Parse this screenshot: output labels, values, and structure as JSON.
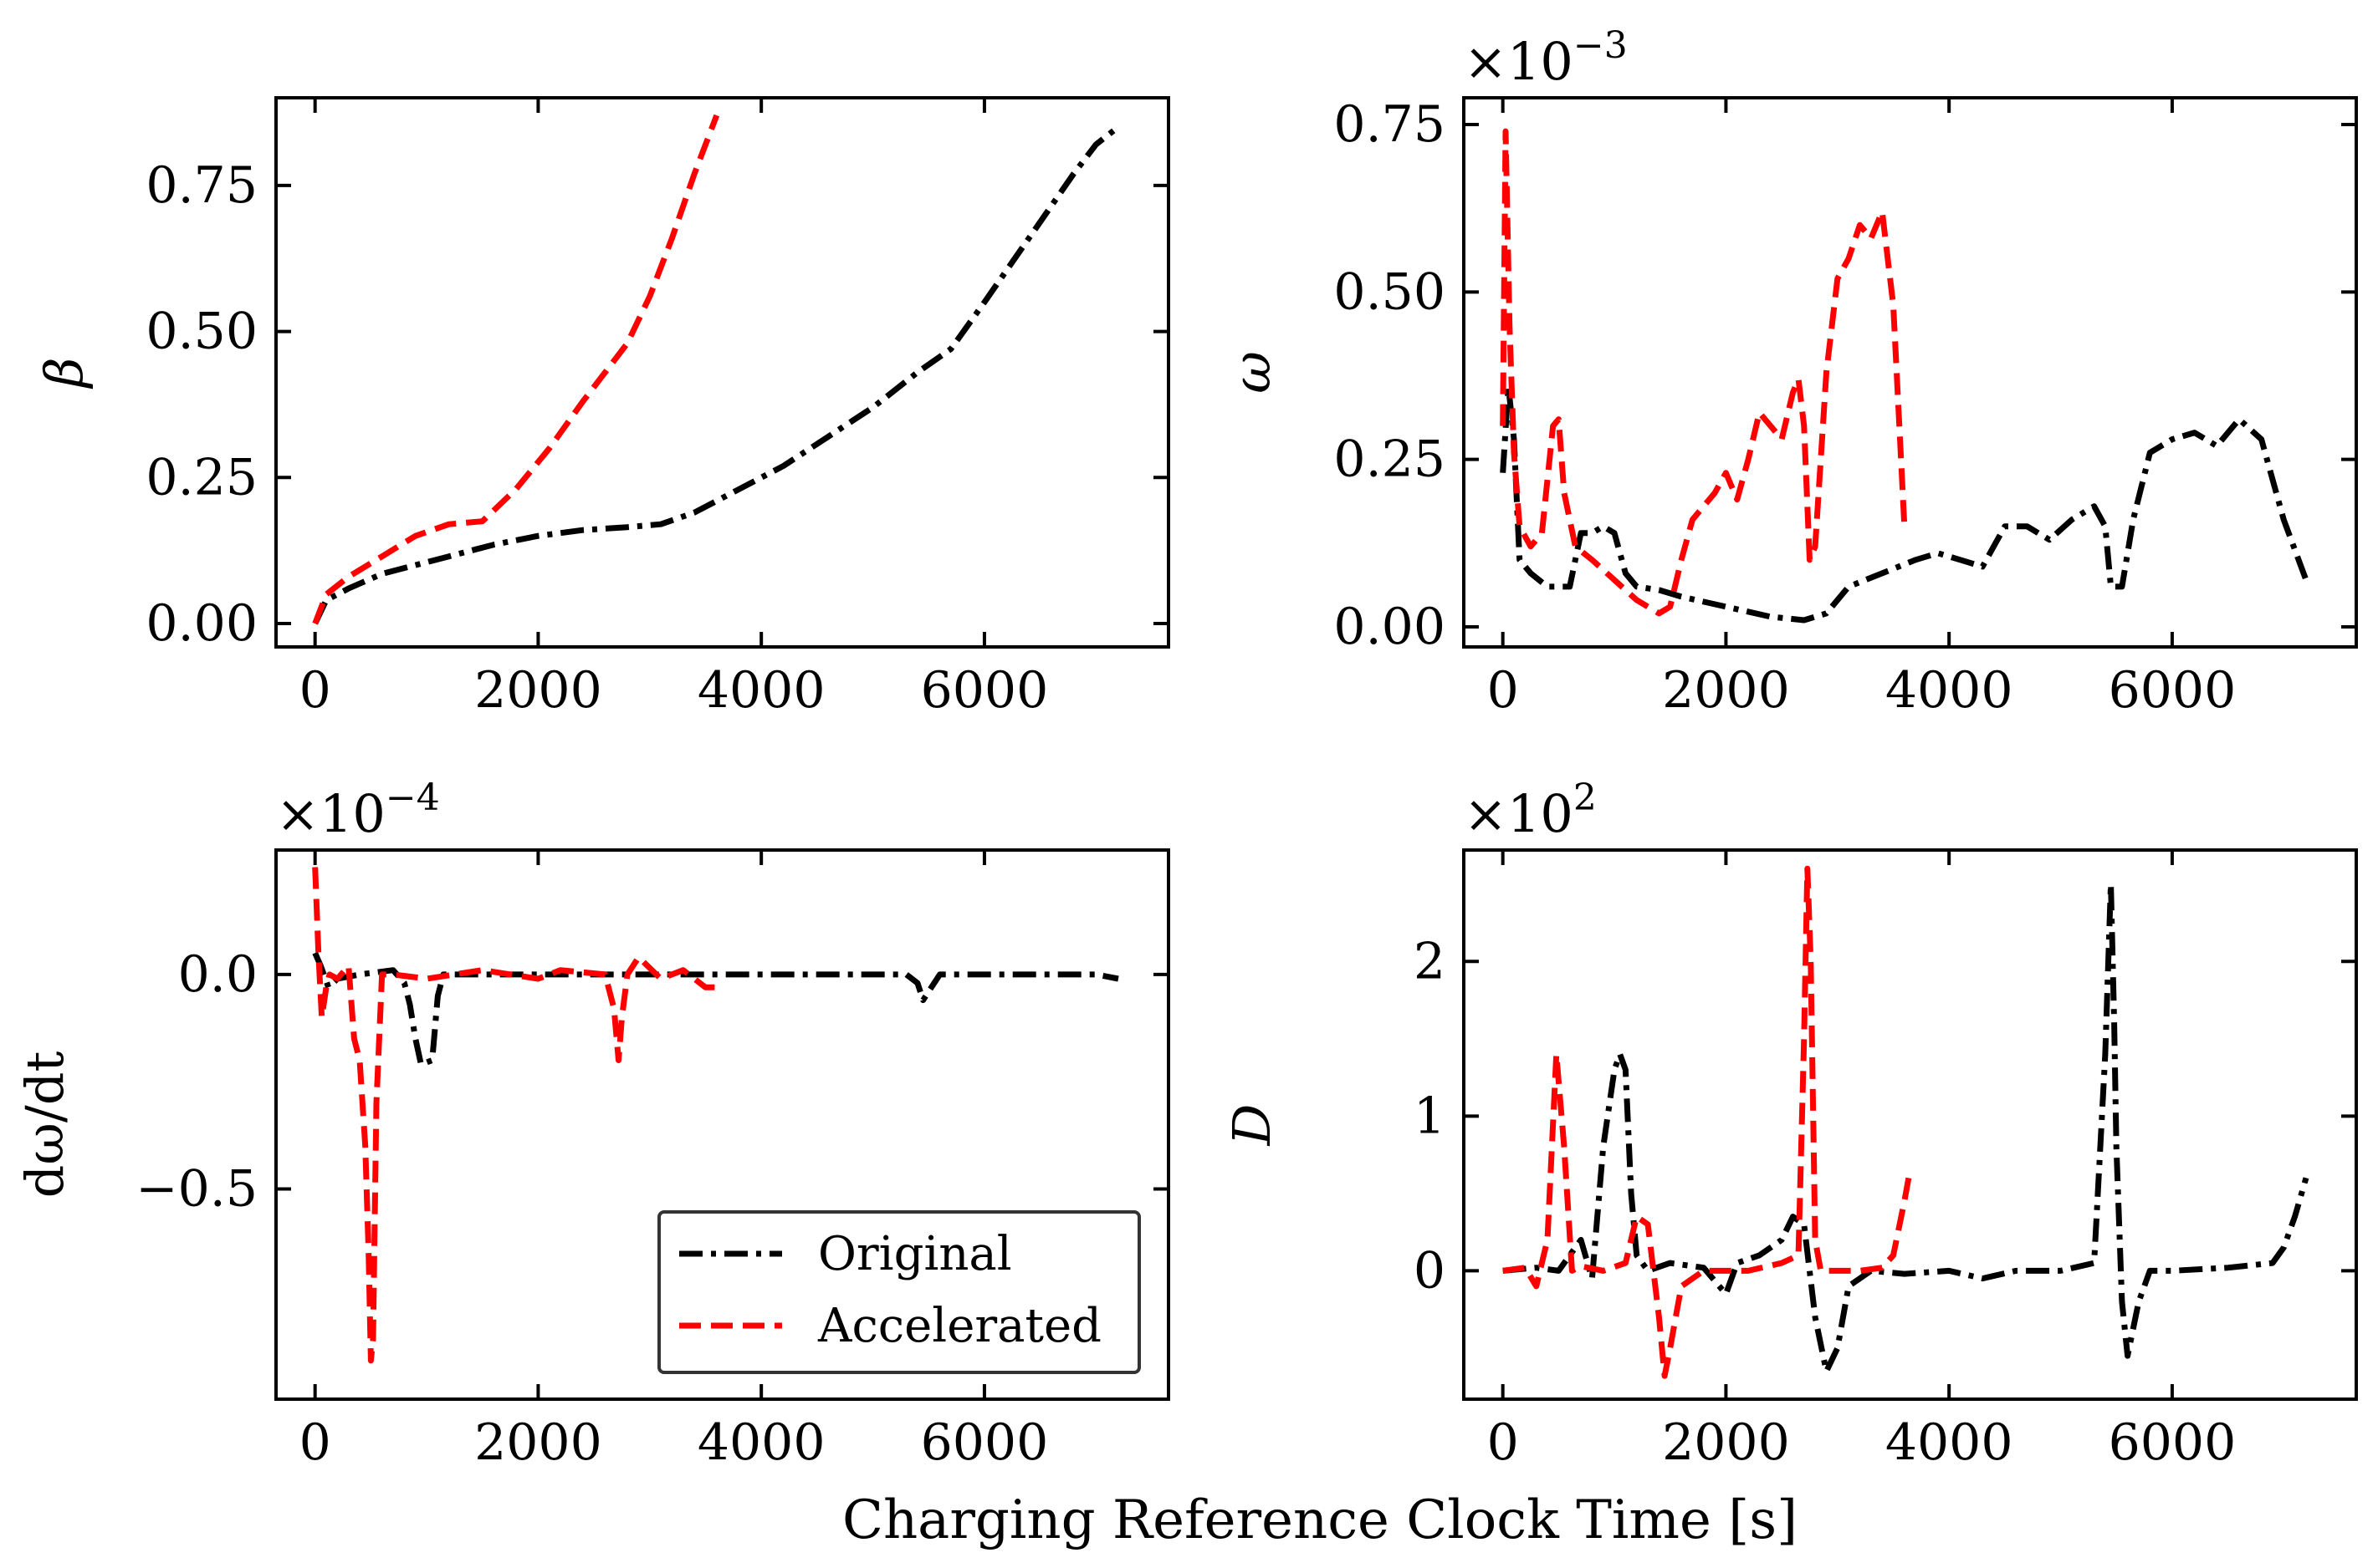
{
  "figure": {
    "xlabel": "Charging Reference Clock Time [s]"
  },
  "legend": {
    "entries": [
      {
        "label": "Original",
        "color": "#000000",
        "dash": "dashdot"
      },
      {
        "label": "Accelerated",
        "color": "#ff0000",
        "dash": "dashed"
      }
    ]
  },
  "chart_data": [
    {
      "type": "line",
      "id": "beta",
      "ylabel": "β",
      "multiplier": "",
      "xlim": [
        -350,
        7650
      ],
      "ylim": [
        -0.04,
        0.9
      ],
      "xticks": [
        0,
        2000,
        4000,
        6000
      ],
      "xtick_labels": [
        "0",
        "2000",
        "4000",
        "6000"
      ],
      "yticks": [
        0,
        0.25,
        0.5,
        0.75
      ],
      "ytick_labels": [
        "0.00",
        "0.25",
        "0.50",
        "0.75"
      ],
      "series": [
        {
          "name": "Original",
          "color": "#000000",
          "dash": "dashdot",
          "x": [
            0,
            100,
            300,
            600,
            900,
            1200,
            1600,
            2000,
            2400,
            2800,
            3100,
            3400,
            3800,
            4200,
            4600,
            5000,
            5400,
            5700,
            6000,
            6400,
            6800,
            7000,
            7200
          ],
          "y": [
            0,
            0.04,
            0.06,
            0.085,
            0.1,
            0.115,
            0.135,
            0.15,
            0.16,
            0.165,
            0.17,
            0.19,
            0.23,
            0.27,
            0.32,
            0.37,
            0.43,
            0.47,
            0.55,
            0.66,
            0.77,
            0.82,
            0.85
          ]
        },
        {
          "name": "Accelerated",
          "color": "#ff0000",
          "dash": "dashed",
          "x": [
            0,
            100,
            300,
            600,
            900,
            1200,
            1500,
            1800,
            2100,
            2400,
            2800,
            3000,
            3200,
            3400,
            3600
          ],
          "y": [
            0,
            0.05,
            0.08,
            0.115,
            0.15,
            0.17,
            0.175,
            0.23,
            0.3,
            0.38,
            0.48,
            0.56,
            0.66,
            0.77,
            0.87
          ]
        }
      ]
    },
    {
      "type": "line",
      "id": "omega",
      "ylabel": "ω",
      "multiplier": "×10",
      "multiplier_exp": "−3",
      "xlim": [
        -350,
        7650
      ],
      "ylim": [
        -0.03,
        0.79
      ],
      "xticks": [
        0,
        2000,
        4000,
        6000
      ],
      "xtick_labels": [
        "0",
        "2000",
        "4000",
        "6000"
      ],
      "yticks": [
        0,
        0.25,
        0.5,
        0.75
      ],
      "ytick_labels": [
        "0.00",
        "0.25",
        "0.50",
        "0.75"
      ],
      "series": [
        {
          "name": "Original",
          "color": "#000000",
          "dash": "dashdot",
          "x": [
            0,
            50,
            100,
            150,
            250,
            400,
            600,
            700,
            800,
            900,
            1000,
            1100,
            1200,
            1400,
            1600,
            2000,
            2400,
            2700,
            2900,
            3100,
            3400,
            3700,
            3900,
            4100,
            4300,
            4500,
            4700,
            4900,
            5100,
            5300,
            5400,
            5450,
            5550,
            5650,
            5800,
            6000,
            6200,
            6400,
            6600,
            6800,
            7000,
            7200
          ],
          "y": [
            0.23,
            0.36,
            0.28,
            0.1,
            0.08,
            0.06,
            0.06,
            0.14,
            0.14,
            0.15,
            0.14,
            0.08,
            0.06,
            0.055,
            0.045,
            0.03,
            0.015,
            0.01,
            0.02,
            0.06,
            0.08,
            0.1,
            0.11,
            0.1,
            0.09,
            0.15,
            0.15,
            0.13,
            0.16,
            0.18,
            0.15,
            0.06,
            0.06,
            0.16,
            0.26,
            0.28,
            0.29,
            0.27,
            0.31,
            0.28,
            0.16,
            0.07
          ]
        },
        {
          "name": "Accelerated",
          "color": "#ff0000",
          "dash": "dashed",
          "x": [
            0,
            25,
            60,
            100,
            150,
            250,
            350,
            450,
            500,
            550,
            650,
            800,
            1000,
            1200,
            1400,
            1500,
            1600,
            1700,
            1900,
            2000,
            2100,
            2200,
            2300,
            2400,
            2500,
            2600,
            2650,
            2700,
            2750,
            2800,
            2900,
            3000,
            3100,
            3200,
            3300,
            3400,
            3500,
            3600
          ],
          "y": [
            0.3,
            0.74,
            0.45,
            0.26,
            0.15,
            0.12,
            0.14,
            0.3,
            0.31,
            0.2,
            0.12,
            0.1,
            0.07,
            0.04,
            0.02,
            0.03,
            0.1,
            0.16,
            0.2,
            0.23,
            0.19,
            0.25,
            0.32,
            0.3,
            0.28,
            0.35,
            0.37,
            0.3,
            0.1,
            0.12,
            0.38,
            0.52,
            0.55,
            0.6,
            0.58,
            0.62,
            0.48,
            0.15
          ]
        }
      ]
    },
    {
      "type": "line",
      "id": "domega",
      "ylabel": "dω/dt",
      "multiplier": "×10",
      "multiplier_exp": "−4",
      "xlim": [
        -350,
        7650
      ],
      "ylim": [
        -0.99,
        0.29
      ],
      "xticks": [
        0,
        2000,
        4000,
        6000
      ],
      "xtick_labels": [
        "0",
        "2000",
        "4000",
        "6000"
      ],
      "yticks": [
        0,
        -0.5
      ],
      "ytick_labels": [
        "0.0",
        "−0.5"
      ],
      "series": [
        {
          "name": "Original",
          "color": "#000000",
          "dash": "dashdot",
          "x": [
            0,
            50,
            120,
            200,
            400,
            700,
            800,
            850,
            900,
            950,
            1050,
            1100,
            1150,
            1300,
            2000,
            3000,
            4000,
            5000,
            5300,
            5400,
            5450,
            5500,
            5600,
            6000,
            7000,
            7200
          ],
          "y": [
            0.05,
            0.02,
            -0.03,
            -0.01,
            0,
            0.01,
            -0.02,
            -0.07,
            -0.15,
            -0.21,
            -0.2,
            -0.05,
            0,
            0,
            0,
            0,
            0,
            0,
            0,
            -0.02,
            -0.06,
            -0.04,
            0,
            0,
            0,
            -0.01
          ]
        },
        {
          "name": "Accelerated",
          "color": "#ff0000",
          "dash": "dashed",
          "x": [
            0,
            30,
            60,
            100,
            130,
            200,
            300,
            350,
            400,
            450,
            480,
            500,
            520,
            550,
            600,
            700,
            1000,
            1500,
            2000,
            2200,
            2600,
            2680,
            2720,
            2750,
            2800,
            2900,
            3100,
            3300,
            3500,
            3600
          ],
          "y": [
            0.25,
            0.05,
            -0.1,
            -0.03,
            0,
            -0.01,
            0.02,
            -0.15,
            -0.2,
            -0.4,
            -0.65,
            -0.9,
            -0.85,
            -0.3,
            0,
            0,
            -0.01,
            0.01,
            -0.01,
            0.01,
            0,
            -0.08,
            -0.2,
            -0.1,
            0,
            0.04,
            -0.01,
            0.01,
            -0.03,
            -0.03
          ]
        }
      ]
    },
    {
      "type": "line",
      "id": "D",
      "ylabel": "D",
      "multiplier": "×10",
      "multiplier_exp": "2",
      "xlim": [
        -350,
        7650
      ],
      "ylim": [
        -0.83,
        2.72
      ],
      "xticks": [
        0,
        2000,
        4000,
        6000
      ],
      "xtick_labels": [
        "0",
        "2000",
        "4000",
        "6000"
      ],
      "yticks": [
        0,
        1,
        2
      ],
      "ytick_labels": [
        "0",
        "1",
        "2"
      ],
      "series": [
        {
          "name": "Original",
          "color": "#000000",
          "dash": "dashdot",
          "x": [
            0,
            300,
            500,
            600,
            700,
            800,
            900,
            1000,
            1050,
            1100,
            1150,
            1200,
            1300,
            1500,
            1800,
            2000,
            2100,
            2300,
            2500,
            2600,
            2700,
            2800,
            2900,
            3000,
            3100,
            3300,
            3600,
            4000,
            4300,
            4600,
            5000,
            5300,
            5400,
            5450,
            5480,
            5500,
            5550,
            5600,
            5700,
            5800,
            6000,
            6500,
            6900,
            7000,
            7100,
            7200
          ],
          "y": [
            0,
            0.02,
            0,
            0.1,
            0.2,
            -0.05,
            0.8,
            1.3,
            1.4,
            1.3,
            0.5,
            0.1,
            0,
            0.05,
            0.02,
            -0.15,
            0.05,
            0.1,
            0.2,
            0.35,
            0.3,
            -0.3,
            -0.65,
            -0.5,
            -0.1,
            0,
            -0.02,
            0,
            -0.05,
            0,
            0,
            0.05,
            1.4,
            2.5,
            1.6,
            0.8,
            -0.2,
            -0.55,
            -0.2,
            0,
            0,
            0.02,
            0.05,
            0.15,
            0.35,
            0.6
          ]
        },
        {
          "name": "Accelerated",
          "color": "#ff0000",
          "dash": "dashed",
          "x": [
            0,
            200,
            300,
            400,
            480,
            550,
            620,
            700,
            900,
            1100,
            1200,
            1300,
            1400,
            1450,
            1500,
            1600,
            1800,
            2200,
            2500,
            2650,
            2700,
            2730,
            2760,
            2800,
            2850,
            3000,
            3200,
            3400,
            3500,
            3600,
            3650
          ],
          "y": [
            0,
            0.02,
            -0.1,
            0.2,
            1.4,
            0.8,
            0,
            0.03,
            0,
            0.05,
            0.35,
            0.3,
            -0.3,
            -0.68,
            -0.5,
            -0.1,
            0,
            0,
            0.05,
            0.1,
            1.5,
            2.6,
            2.0,
            0.2,
            0,
            0,
            0,
            0.02,
            0.1,
            0.45,
            0.65
          ]
        }
      ]
    }
  ]
}
